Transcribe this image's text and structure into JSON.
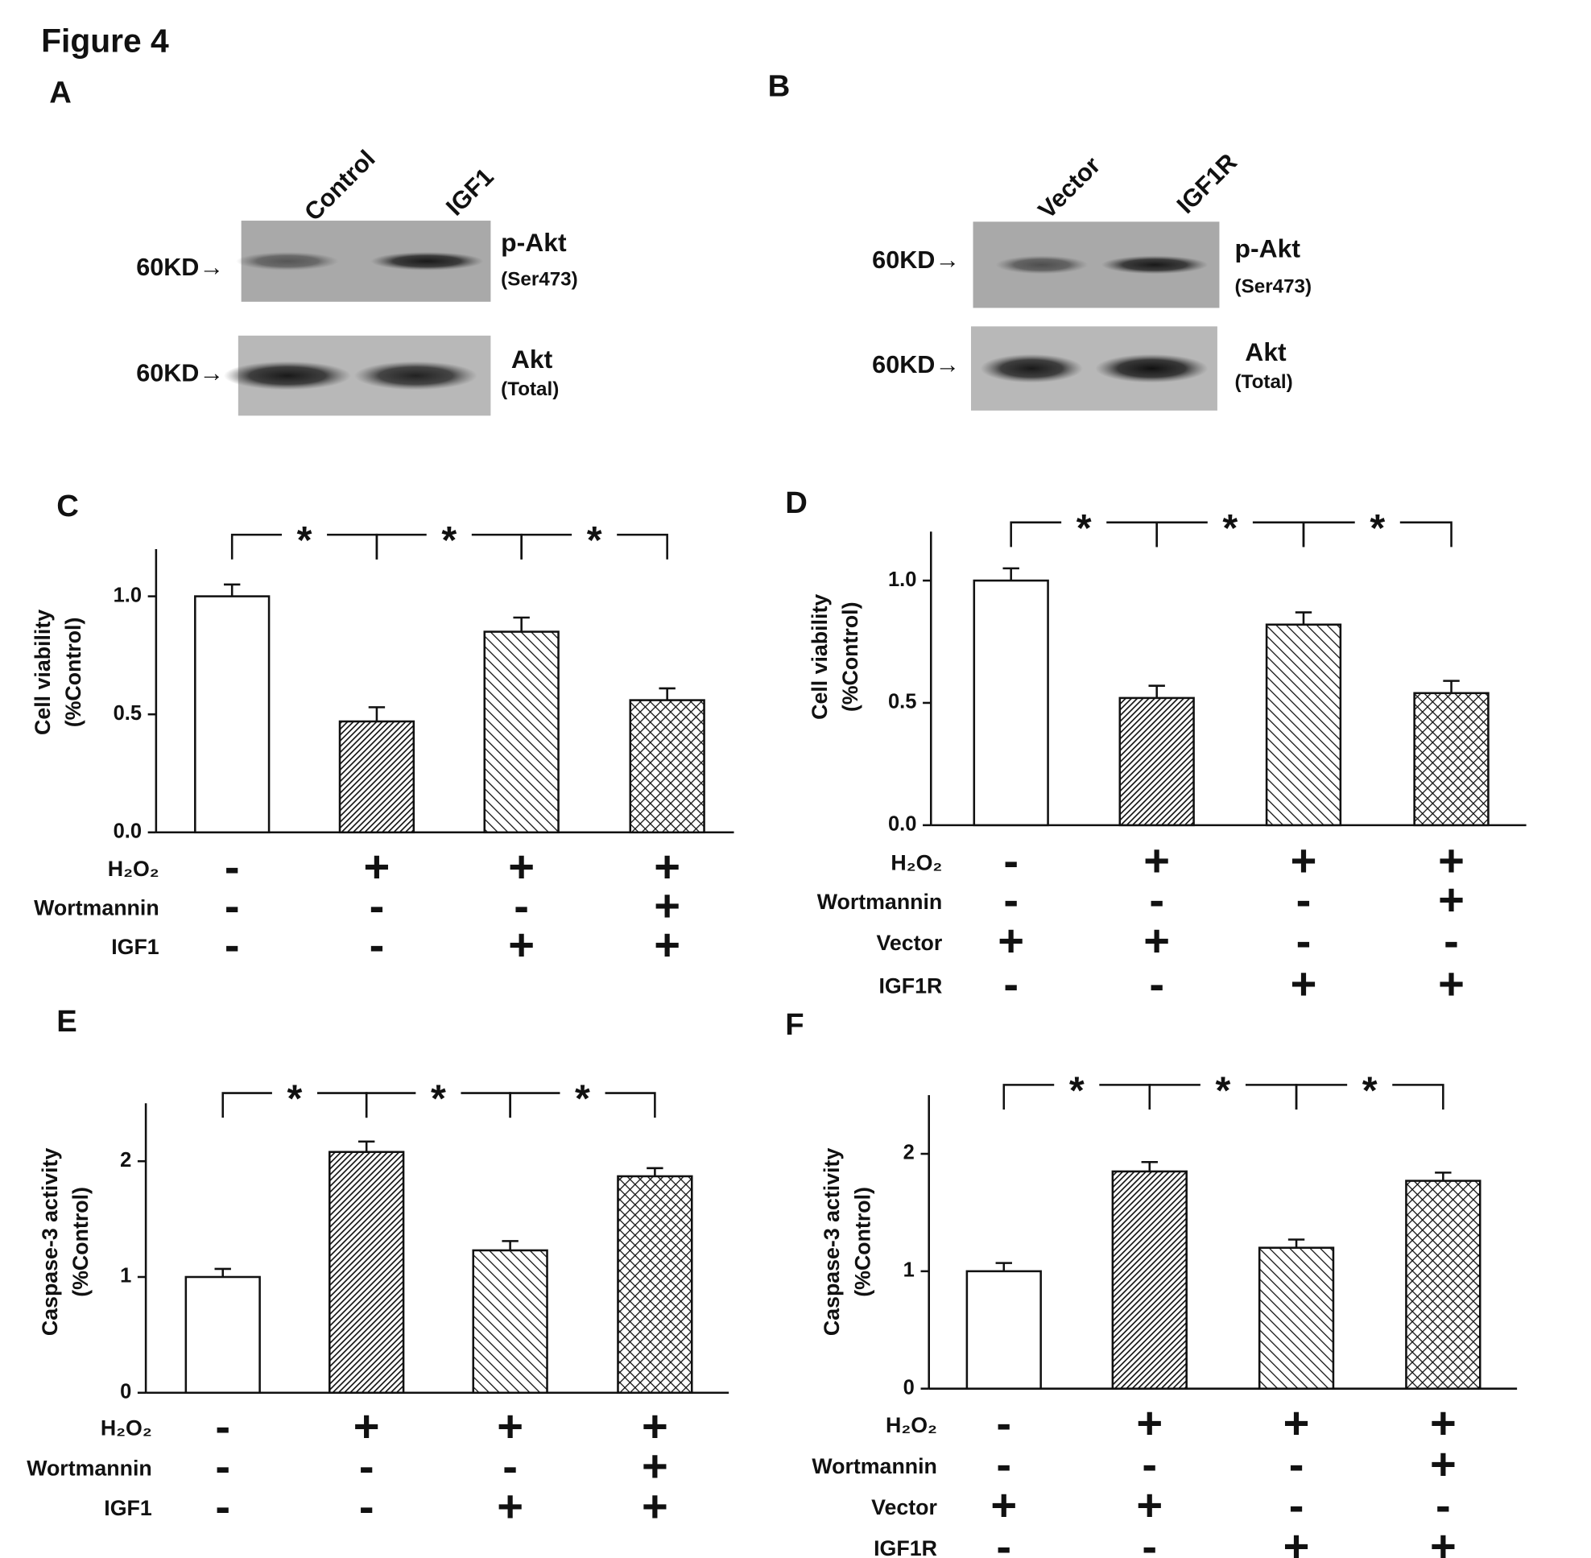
{
  "figure_title": "Figure 4",
  "blots": [
    {
      "panel": "A",
      "lanes": [
        "Control",
        "IGF1"
      ],
      "rows": [
        {
          "marker": "60KD→",
          "label": "p-Akt",
          "sublabel": "(Ser473)"
        },
        {
          "marker": "60KD→",
          "label": "Akt",
          "sublabel": "(Total)"
        }
      ]
    },
    {
      "panel": "B",
      "lanes": [
        "Vector",
        "IGF1R"
      ],
      "rows": [
        {
          "marker": "60KD→",
          "label": "p-Akt",
          "sublabel": "(Ser473)"
        },
        {
          "marker": "60KD→",
          "label": "Akt",
          "sublabel": "(Total)"
        }
      ]
    }
  ],
  "chart_data": [
    {
      "type": "bar",
      "panel": "C",
      "ylabel": [
        "Cell viability",
        "(%Control)"
      ],
      "categories": [
        null,
        null,
        null,
        null
      ],
      "values": [
        1.0,
        0.47,
        0.85,
        0.56
      ],
      "errors": [
        0.05,
        0.06,
        0.06,
        0.05
      ],
      "bar_fills": [
        "white",
        "hatch-dense",
        "hatch-sparse",
        "crosshatch"
      ],
      "ylim": [
        0,
        1.2
      ],
      "yticks": [
        {
          "value": 0,
          "label": "0.0"
        },
        {
          "value": 0.5,
          "label": "0.5"
        },
        {
          "value": 1,
          "label": "1.0"
        }
      ],
      "significance": [
        {
          "between": [
            0,
            1
          ],
          "label": "*"
        },
        {
          "between": [
            1,
            2
          ],
          "label": "*"
        },
        {
          "between": [
            2,
            3
          ],
          "label": "*"
        }
      ],
      "conditions": [
        {
          "name": "H₂O₂",
          "signs": [
            "-",
            "+",
            "+",
            "+"
          ]
        },
        {
          "name": "Wortmannin",
          "signs": [
            "-",
            "-",
            "-",
            "+"
          ]
        },
        {
          "name": "IGF1",
          "signs": [
            "-",
            "-",
            "+",
            "+"
          ]
        }
      ]
    },
    {
      "type": "bar",
      "panel": "D",
      "ylabel": [
        "Cell viability",
        "(%Control)"
      ],
      "categories": [
        null,
        null,
        null,
        null
      ],
      "values": [
        1.0,
        0.52,
        0.82,
        0.54
      ],
      "errors": [
        0.05,
        0.05,
        0.05,
        0.05
      ],
      "bar_fills": [
        "white",
        "hatch-dense",
        "hatch-sparse",
        "crosshatch"
      ],
      "ylim": [
        0,
        1.2
      ],
      "yticks": [
        {
          "value": 0,
          "label": "0.0"
        },
        {
          "value": 0.5,
          "label": "0.5"
        },
        {
          "value": 1,
          "label": "1.0"
        }
      ],
      "significance": [
        {
          "between": [
            0,
            1
          ],
          "label": "*"
        },
        {
          "between": [
            1,
            2
          ],
          "label": "*"
        },
        {
          "between": [
            2,
            3
          ],
          "label": "*"
        }
      ],
      "conditions": [
        {
          "name": "H₂O₂",
          "signs": [
            "-",
            "+",
            "+",
            "+"
          ]
        },
        {
          "name": "Wortmannin",
          "signs": [
            "-",
            "-",
            "-",
            "+"
          ]
        },
        {
          "name": "Vector",
          "signs": [
            "+",
            "+",
            "-",
            "-"
          ]
        },
        {
          "name": "IGF1R",
          "signs": [
            "-",
            "-",
            "+",
            "+"
          ]
        }
      ]
    },
    {
      "type": "bar",
      "panel": "E",
      "ylabel": [
        "Caspase-3 activity",
        "(%Control)"
      ],
      "categories": [
        null,
        null,
        null,
        null
      ],
      "values": [
        1.0,
        2.08,
        1.23,
        1.87
      ],
      "errors": [
        0.07,
        0.09,
        0.08,
        0.07
      ],
      "bar_fills": [
        "white",
        "hatch-dense",
        "hatch-sparse",
        "crosshatch"
      ],
      "ylim": [
        0,
        2.5
      ],
      "yticks": [
        0,
        1,
        2
      ],
      "significance": [
        {
          "between": [
            0,
            1
          ],
          "label": "*"
        },
        {
          "between": [
            1,
            2
          ],
          "label": "*"
        },
        {
          "between": [
            2,
            3
          ],
          "label": "*"
        }
      ],
      "conditions": [
        {
          "name": "H₂O₂",
          "signs": [
            "-",
            "+",
            "+",
            "+"
          ]
        },
        {
          "name": "Wortmannin",
          "signs": [
            "-",
            "-",
            "-",
            "+"
          ]
        },
        {
          "name": "IGF1",
          "signs": [
            "-",
            "-",
            "+",
            "+"
          ]
        }
      ]
    },
    {
      "type": "bar",
      "panel": "F",
      "ylabel": [
        "Caspase-3 activity",
        "(%Control)"
      ],
      "categories": [
        null,
        null,
        null,
        null
      ],
      "values": [
        1.0,
        1.85,
        1.2,
        1.77
      ],
      "errors": [
        0.07,
        0.08,
        0.07,
        0.07
      ],
      "bar_fills": [
        "white",
        "hatch-dense",
        "hatch-sparse",
        "crosshatch"
      ],
      "ylim": [
        0,
        2.5
      ],
      "yticks": [
        0,
        1,
        2
      ],
      "significance": [
        {
          "between": [
            0,
            1
          ],
          "label": "*"
        },
        {
          "between": [
            1,
            2
          ],
          "label": "*"
        },
        {
          "between": [
            2,
            3
          ],
          "label": "*"
        }
      ],
      "conditions": [
        {
          "name": "H₂O₂",
          "signs": [
            "-",
            "+",
            "+",
            "+"
          ]
        },
        {
          "name": "Wortmannin",
          "signs": [
            "-",
            "-",
            "-",
            "+"
          ]
        },
        {
          "name": "Vector",
          "signs": [
            "+",
            "+",
            "-",
            "-"
          ]
        },
        {
          "name": "IGF1R",
          "signs": [
            "-",
            "-",
            "+",
            "+"
          ]
        }
      ]
    }
  ]
}
